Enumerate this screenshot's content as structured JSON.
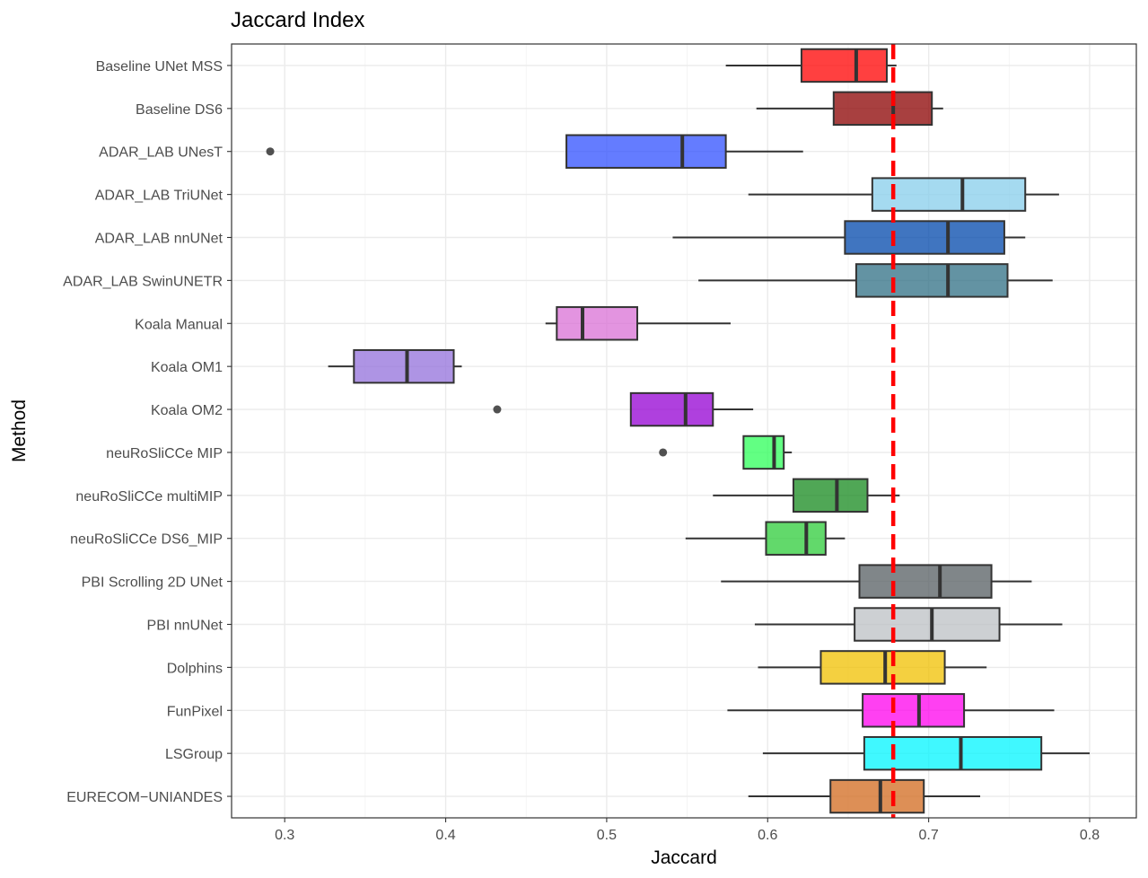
{
  "chart_data": {
    "type": "boxplot",
    "orientation": "horizontal",
    "title": "Jaccard Index",
    "xlabel": "Jaccard",
    "ylabel": "Method",
    "xlim": [
      0.267,
      0.829
    ],
    "xticks": [
      0.3,
      0.4,
      0.5,
      0.6,
      0.7,
      0.8
    ],
    "xtick_labels": [
      "0.3",
      "0.4",
      "0.5",
      "0.6",
      "0.7",
      "0.8"
    ],
    "reference_line": {
      "value": 0.678,
      "color": "#ff0000",
      "style": "dashed"
    },
    "grid": true,
    "categories": [
      {
        "name": "Baseline UNet MSS",
        "min": 0.574,
        "q1": 0.621,
        "median": 0.655,
        "q3": 0.674,
        "max": 0.68,
        "outliers": [],
        "color": "#ff0000"
      },
      {
        "name": "Baseline DS6",
        "min": 0.593,
        "q1": 0.641,
        "median": 0.678,
        "q3": 0.702,
        "max": 0.709,
        "outliers": [],
        "color": "#8b0000"
      },
      {
        "name": "ADAR_LAB UNesT",
        "min": 0.475,
        "q1": 0.475,
        "median": 0.547,
        "q3": 0.574,
        "max": 0.622,
        "outliers": [
          0.291
        ],
        "color": "#3050ff"
      },
      {
        "name": "ADAR_LAB TriUNet",
        "min": 0.588,
        "q1": 0.665,
        "median": 0.721,
        "q3": 0.76,
        "max": 0.781,
        "outliers": [],
        "color": "#87ceeb"
      },
      {
        "name": "ADAR_LAB nnUNet",
        "min": 0.541,
        "q1": 0.648,
        "median": 0.712,
        "q3": 0.747,
        "max": 0.76,
        "outliers": [],
        "color": "#0047ab"
      },
      {
        "name": "ADAR_LAB SwinUNETR",
        "min": 0.557,
        "q1": 0.655,
        "median": 0.712,
        "q3": 0.749,
        "max": 0.777,
        "outliers": [],
        "color": "#2f6f84"
      },
      {
        "name": "Koala Manual",
        "min": 0.462,
        "q1": 0.469,
        "median": 0.485,
        "q3": 0.519,
        "max": 0.577,
        "outliers": [],
        "color": "#da70d6"
      },
      {
        "name": "Koala OM1",
        "min": 0.327,
        "q1": 0.343,
        "median": 0.376,
        "q3": 0.405,
        "max": 0.41,
        "outliers": [],
        "color": "#9370db"
      },
      {
        "name": "Koala OM2",
        "min": 0.515,
        "q1": 0.515,
        "median": 0.549,
        "q3": 0.566,
        "max": 0.591,
        "outliers": [
          0.432
        ],
        "color": "#9400d3"
      },
      {
        "name": "neuRoSliCCe MIP",
        "min": 0.585,
        "q1": 0.585,
        "median": 0.604,
        "q3": 0.61,
        "max": 0.615,
        "outliers": [
          0.535
        ],
        "color": "#2eff5a"
      },
      {
        "name": "neuRoSliCCe multiMIP",
        "min": 0.566,
        "q1": 0.616,
        "median": 0.643,
        "q3": 0.662,
        "max": 0.682,
        "outliers": [],
        "color": "#158a1e"
      },
      {
        "name": "neuRoSliCCe DS6_MIP",
        "min": 0.549,
        "q1": 0.599,
        "median": 0.624,
        "q3": 0.636,
        "max": 0.648,
        "outliers": [],
        "color": "#2ecc3a"
      },
      {
        "name": "PBI Scrolling 2D UNet",
        "min": 0.571,
        "q1": 0.657,
        "median": 0.707,
        "q3": 0.739,
        "max": 0.764,
        "outliers": [],
        "color": "#555d61"
      },
      {
        "name": "PBI nnUNet",
        "min": 0.592,
        "q1": 0.654,
        "median": 0.702,
        "q3": 0.744,
        "max": 0.783,
        "outliers": [],
        "color": "#bcc0c4"
      },
      {
        "name": "Dolphins",
        "min": 0.594,
        "q1": 0.633,
        "median": 0.673,
        "q3": 0.71,
        "max": 0.736,
        "outliers": [],
        "color": "#f0c000"
      },
      {
        "name": "FunPixel",
        "min": 0.575,
        "q1": 0.659,
        "median": 0.694,
        "q3": 0.722,
        "max": 0.778,
        "outliers": [],
        "color": "#ff00ee"
      },
      {
        "name": "LSGroup",
        "min": 0.597,
        "q1": 0.66,
        "median": 0.72,
        "q3": 0.77,
        "max": 0.8,
        "outliers": [],
        "color": "#00f5ff"
      },
      {
        "name": "EURECOM−UNIANDES",
        "min": 0.588,
        "q1": 0.639,
        "median": 0.67,
        "q3": 0.697,
        "max": 0.732,
        "outliers": [],
        "color": "#d2691e"
      }
    ]
  }
}
